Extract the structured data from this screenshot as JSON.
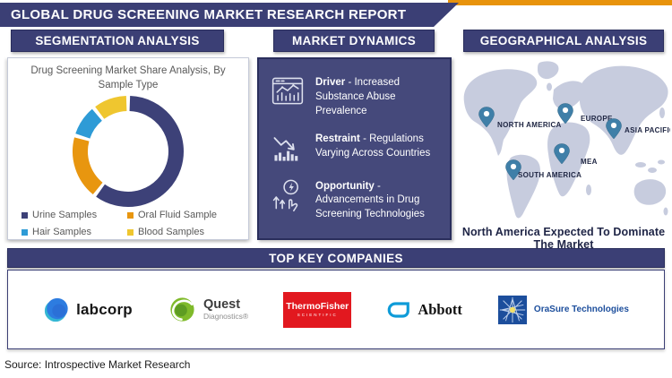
{
  "title": "GLOBAL DRUG SCREENING MARKET RESEARCH REPORT",
  "colors": {
    "navy": "#3B3F75",
    "navyDark": "#2A2E5C",
    "navyBody": "#45497B",
    "orange": "#E8930C",
    "mapLand": "#C7CCDE",
    "pinBlue": "#3F7FA8",
    "textGray": "#595959",
    "captionNavy": "#202647"
  },
  "panels": {
    "segmentation": {
      "header": "SEGMENTATION ANALYSIS"
    },
    "dynamics": {
      "header": "MARKET DYNAMICS",
      "items": [
        {
          "label": "Driver",
          "text": "- Increased Substance Abuse Prevalence",
          "icon": "dashboard-chart-icon"
        },
        {
          "label": "Restraint",
          "text": "- Regulations Varying Across Countries",
          "icon": "declining-chart-icon"
        },
        {
          "label": "Opportunity",
          "text": "- Advancements in Drug Screening Technologies",
          "icon": "innovation-icon"
        }
      ]
    },
    "geography": {
      "header": "GEOGRAPHICAL ANALYSIS",
      "regions": [
        "NORTH AMERICA",
        "EUROPE",
        "ASIA PACIFIC",
        "MEA",
        "SOUTH AMERICA"
      ],
      "caption": "North America Expected To Dominate The Market"
    }
  },
  "chart_data": {
    "type": "donut",
    "title": "Drug Screening Market Share Analysis, By Sample Type",
    "segments": [
      {
        "label": "Urine Samples",
        "value": 62,
        "color": "#3D4178"
      },
      {
        "label": "Oral Fluid Sample",
        "value": 19,
        "color": "#E8960F"
      },
      {
        "label": "Hair Samples",
        "value": 9,
        "color": "#2E9BD6"
      },
      {
        "label": "Blood Samples",
        "value": 10,
        "color": "#EFC62F"
      }
    ],
    "legend_position": "bottom",
    "value_unit": "percent-estimated"
  },
  "companies": {
    "header": "TOP KEY COMPANIES",
    "items": [
      {
        "name": "Labcorp",
        "wordmark": "labcorp"
      },
      {
        "name": "Quest Diagnostics",
        "wordmark": "Quest",
        "subtext": "Diagnostics®"
      },
      {
        "name": "Thermo Fisher Scientific",
        "wordmark": "ThermoFisher",
        "subtext": "SCIENTIFIC"
      },
      {
        "name": "Abbott",
        "wordmark": "Abbott"
      },
      {
        "name": "OraSure Technologies",
        "wordmark": "OraSure Technologies"
      }
    ]
  },
  "source": "Source: Introspective Market Research"
}
